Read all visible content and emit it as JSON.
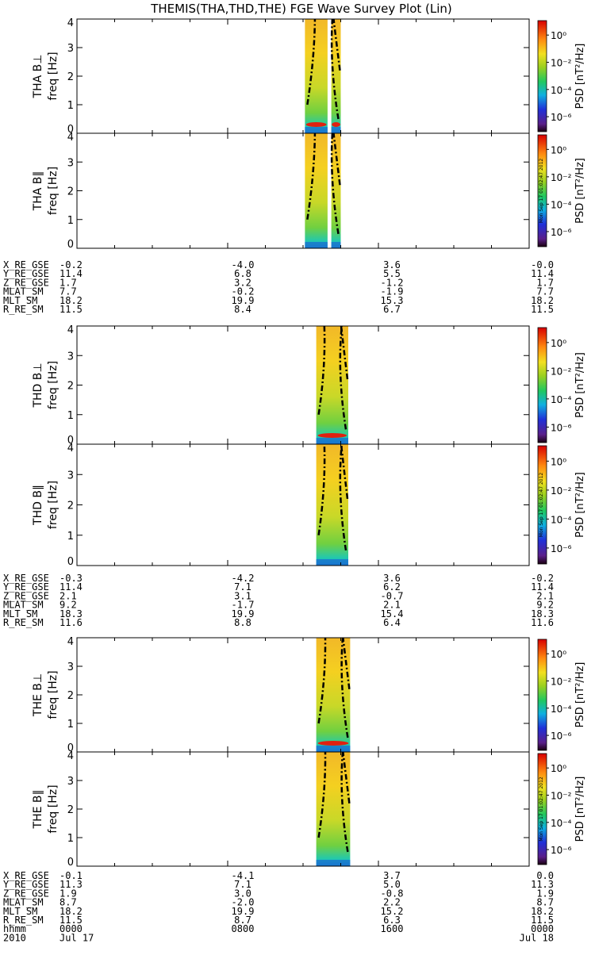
{
  "title": "THEMIS(THA,THD,THE) FGE Wave Survey Plot (Lin)",
  "stamp": "Mon Sep 17 01:02:47 2012",
  "colorbar": {
    "label": "PSD [nT²/Hz]",
    "ticks": [
      "10⁰",
      "10⁻²",
      "10⁻⁴",
      "10⁻⁶"
    ]
  },
  "chart_data": [
    {
      "type": "heatmap",
      "probe": "THA",
      "component": "B⊥",
      "ylabel": "THA B⊥",
      "yunit": "freq [Hz]",
      "ylim": [
        0,
        4
      ],
      "yticks": [
        "0",
        "1",
        "2",
        "3",
        "4"
      ],
      "data_window_hours": [
        [
          12.1,
          13.3
        ],
        [
          13.5,
          14.0
        ]
      ],
      "colorbar_range": [
        "1e-6",
        "1e1"
      ]
    },
    {
      "type": "heatmap",
      "probe": "THA",
      "component": "B∥",
      "ylabel": "THA B∥",
      "yunit": "freq [Hz]",
      "ylim": [
        0,
        4
      ],
      "yticks": [
        "0",
        "1",
        "2",
        "3",
        "4"
      ],
      "data_window_hours": [
        [
          12.1,
          13.3
        ],
        [
          13.5,
          14.0
        ]
      ],
      "colorbar_range": [
        "1e-6",
        "1e1"
      ]
    },
    {
      "type": "heatmap",
      "probe": "THD",
      "component": "B⊥",
      "ylabel": "THD B⊥",
      "yunit": "freq [Hz]",
      "ylim": [
        0,
        4
      ],
      "yticks": [
        "0",
        "1",
        "2",
        "3",
        "4"
      ],
      "data_window_hours": [
        [
          12.7,
          14.4
        ]
      ],
      "colorbar_range": [
        "1e-6",
        "1e1"
      ]
    },
    {
      "type": "heatmap",
      "probe": "THD",
      "component": "B∥",
      "ylabel": "THD B∥",
      "yunit": "freq [Hz]",
      "ylim": [
        0,
        4
      ],
      "yticks": [
        "0",
        "1",
        "2",
        "3",
        "4"
      ],
      "data_window_hours": [
        [
          12.7,
          14.4
        ]
      ],
      "colorbar_range": [
        "1e-6",
        "1e1"
      ]
    },
    {
      "type": "heatmap",
      "probe": "THE",
      "component": "B⊥",
      "ylabel": "THE B⊥",
      "yunit": "freq [Hz]",
      "ylim": [
        0,
        4
      ],
      "yticks": [
        "0",
        "1",
        "2",
        "3",
        "4"
      ],
      "data_window_hours": [
        [
          12.7,
          14.5
        ]
      ],
      "colorbar_range": [
        "1e-6",
        "1e1"
      ]
    },
    {
      "type": "heatmap",
      "probe": "THE",
      "component": "B∥",
      "ylabel": "THE B∥",
      "yunit": "freq [Hz]",
      "ylim": [
        0,
        4
      ],
      "yticks": [
        "0",
        "1",
        "2",
        "3",
        "4"
      ],
      "data_window_hours": [
        [
          12.7,
          14.5
        ]
      ],
      "colorbar_range": [
        "1e-6",
        "1e1"
      ]
    }
  ],
  "ephemeris": [
    {
      "rows": [
        {
          "label": "X_RE_GSE",
          "values": [
            "-0.2",
            "-4.0",
            "3.6",
            "-0.0"
          ]
        },
        {
          "label": "Y_RE_GSE",
          "values": [
            "11.4",
            "6.8",
            "5.5",
            "11.4"
          ]
        },
        {
          "label": "Z_RE_GSE",
          "values": [
            "1.7",
            "3.2",
            "-1.2",
            "1.7"
          ]
        },
        {
          "label": "MLAT_SM",
          "values": [
            "7.7",
            "-0.2",
            "-1.9",
            "7.7"
          ]
        },
        {
          "label": "MLT_SM",
          "values": [
            "18.2",
            "19.9",
            "15.3",
            "18.2"
          ]
        },
        {
          "label": "R_RE_SM",
          "values": [
            "11.5",
            "8.4",
            "6.7",
            "11.5"
          ]
        }
      ]
    },
    {
      "rows": [
        {
          "label": "X_RE_GSE",
          "values": [
            "-0.3",
            "-4.2",
            "3.6",
            "-0.2"
          ]
        },
        {
          "label": "Y_RE_GSE",
          "values": [
            "11.4",
            "7.1",
            "6.2",
            "11.4"
          ]
        },
        {
          "label": "Z_RE_GSE",
          "values": [
            "2.1",
            "3.1",
            "-0.7",
            "2.1"
          ]
        },
        {
          "label": "MLAT_SM",
          "values": [
            "9.2",
            "-1.7",
            "2.1",
            "9.2"
          ]
        },
        {
          "label": "MLT_SM",
          "values": [
            "18.3",
            "19.9",
            "15.4",
            "18.3"
          ]
        },
        {
          "label": "R_RE_SM",
          "values": [
            "11.6",
            "8.8",
            "6.4",
            "11.6"
          ]
        }
      ]
    },
    {
      "rows": [
        {
          "label": "X_RE_GSE",
          "values": [
            "-0.1",
            "-4.1",
            "3.7",
            "0.0"
          ]
        },
        {
          "label": "Y_RE_GSE",
          "values": [
            "11.3",
            "7.1",
            "5.0",
            "11.3"
          ]
        },
        {
          "label": "Z_RE_GSE",
          "values": [
            "1.9",
            "3.0",
            "-0.8",
            "1.9"
          ]
        },
        {
          "label": "MLAT_SM",
          "values": [
            "8.7",
            "-2.0",
            "2.2",
            "8.7"
          ]
        },
        {
          "label": "MLT_SM",
          "values": [
            "18.2",
            "19.9",
            "15.2",
            "18.2"
          ]
        },
        {
          "label": "R_RE_SM",
          "values": [
            "11.5",
            "8.7",
            "6.3",
            "11.5"
          ]
        },
        {
          "label": "hhmm",
          "values": [
            "0000",
            "0800",
            "1600",
            "0000"
          ]
        },
        {
          "label": "2010",
          "values": [
            "Jul 17",
            "",
            "",
            "Jul 18"
          ]
        }
      ]
    }
  ]
}
